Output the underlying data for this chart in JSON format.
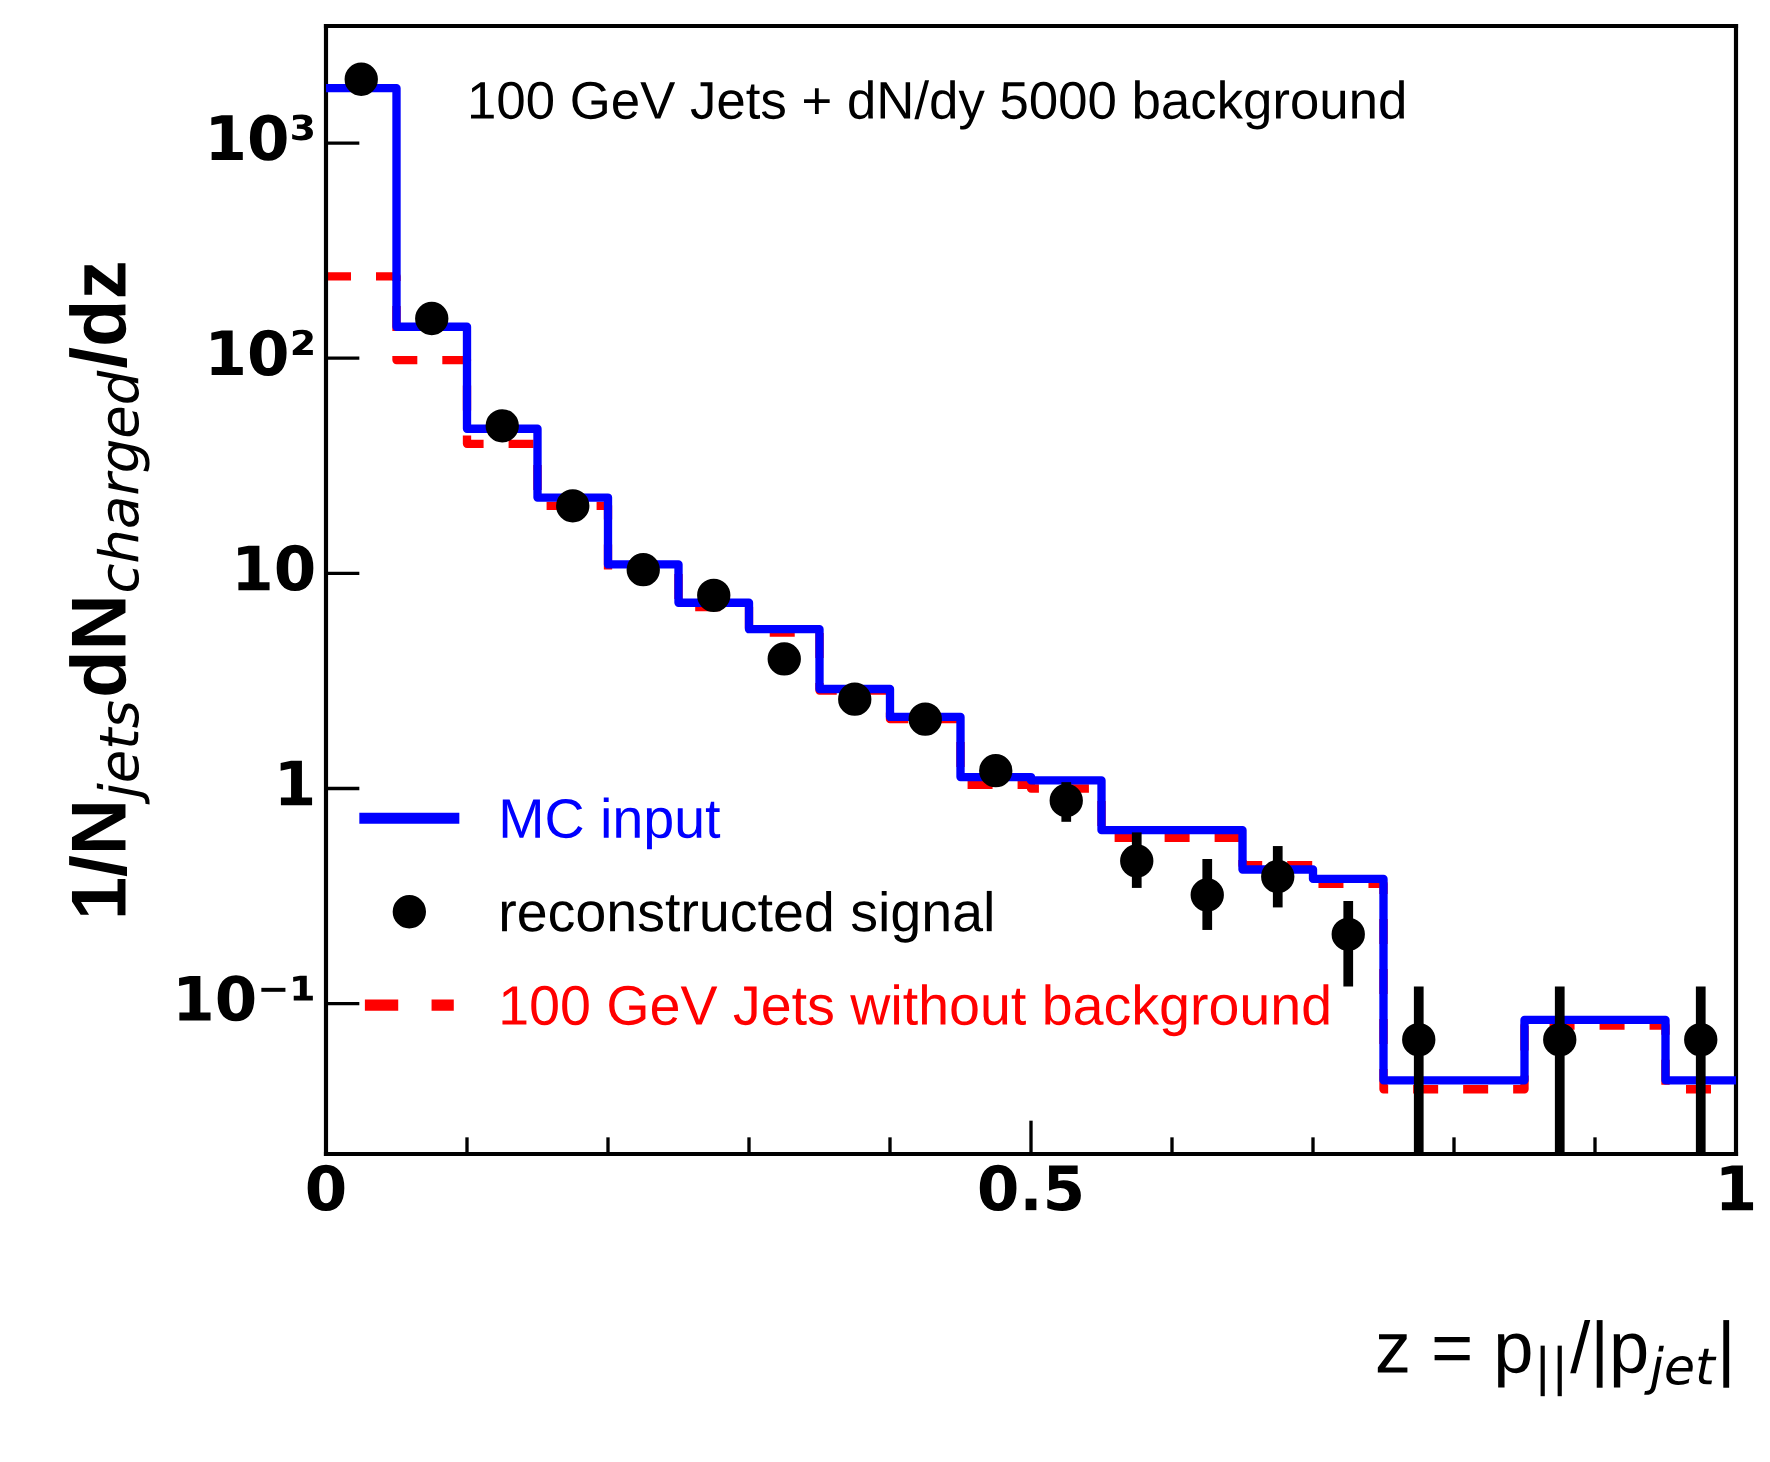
{
  "chart_data": {
    "type": "histogram",
    "annotations": [
      "100 GeV Jets + dN/dy 5000 background"
    ],
    "xlabel": "z = p$_{||}$/|p$_{jet}$|",
    "ylabel": "1/N$_{jets}$dN$_{charged}$/dz",
    "bins": [
      0,
      0.05,
      0.1,
      0.15,
      0.2,
      0.25,
      0.3,
      0.35,
      0.4,
      0.45,
      0.5,
      0.55,
      0.6,
      0.65,
      0.7,
      0.75,
      0.85,
      0.95,
      1.0
    ],
    "series": [
      {
        "name": "MC input",
        "color": "#0000ff",
        "line_style": "solid",
        "values": [
          1800,
          140,
          47,
          22.5,
          11,
          7.3,
          5.5,
          2.9,
          2.15,
          1.13,
          1.09,
          0.64,
          0.64,
          0.42,
          0.38,
          0.044,
          0.084,
          0.044
        ]
      },
      {
        "name": "reconstructed signal",
        "type": "scatter",
        "color": "#000000",
        "marker": "circle",
        "x": [
          0.025,
          0.075,
          0.125,
          0.175,
          0.225,
          0.275,
          0.325,
          0.375,
          0.425,
          0.475,
          0.525,
          0.575,
          0.625,
          0.675,
          0.725,
          0.775,
          0.875,
          0.975
        ],
        "values": [
          1980,
          153,
          48.5,
          20.6,
          10.4,
          7.9,
          4.0,
          2.6,
          2.1,
          1.21,
          0.88,
          0.46,
          0.32,
          0.39,
          0.21,
          0.068,
          0.068,
          0.068
        ],
        "errors": [
          null,
          null,
          null,
          null,
          null,
          null,
          null,
          null,
          null,
          null,
          [
            0.7,
            1.07
          ],
          [
            0.345,
            0.625
          ],
          [
            0.22,
            0.47
          ],
          [
            0.28,
            0.54
          ],
          [
            0.12,
            0.3
          ],
          [
            0.02,
            0.12
          ],
          [
            0.02,
            0.12
          ],
          [
            0.02,
            0.12
          ]
        ]
      },
      {
        "name": "100 GeV Jets without background",
        "color": "#ff0000",
        "line_style": "dashed",
        "values": [
          240,
          98,
          40,
          20.6,
          10,
          6.96,
          5.3,
          2.85,
          2.1,
          1.04,
          1.0,
          0.59,
          0.59,
          0.44,
          0.36,
          0.04,
          0.079,
          0.04
        ]
      }
    ],
    "log": "y",
    "xlim": [
      0,
      1
    ],
    "xticks": [
      0,
      0.5,
      1
    ],
    "ylim": [
      0.02,
      3500
    ],
    "yticks": [
      {
        "value": 1000,
        "label": "10³"
      },
      {
        "value": 100,
        "label": "10²"
      },
      10,
      1,
      {
        "value": 0.1,
        "label": "10⁻¹"
      }
    ],
    "grid": false,
    "legend": "bottom left"
  }
}
